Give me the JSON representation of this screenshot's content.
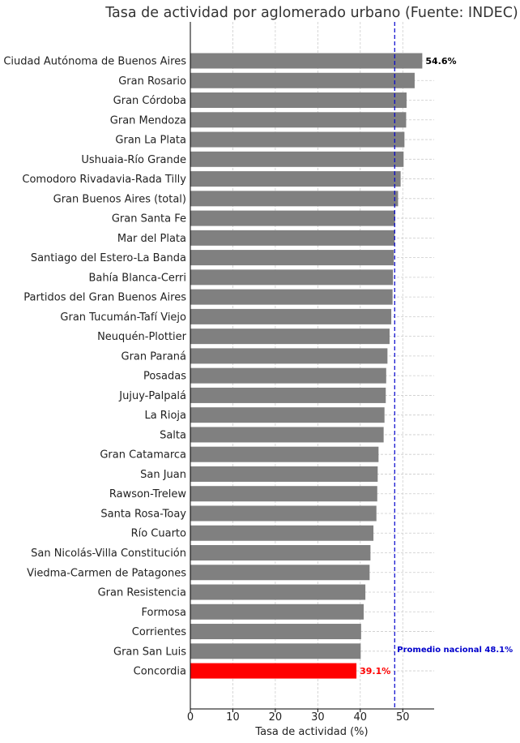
{
  "chart_data": {
    "type": "bar",
    "orientation": "horizontal",
    "title": "Tasa de actividad por aglomerado urbano (Fuente: INDEC)",
    "xlabel": "Tasa de actividad (%)",
    "ylabel": "",
    "xlim": [
      0,
      57.5
    ],
    "xticks": [
      0,
      10,
      20,
      30,
      40,
      50
    ],
    "grid": true,
    "categories": [
      "Ciudad Autónoma de Buenos Aires",
      "Gran Rosario",
      "Gran Córdoba",
      "Gran Mendoza",
      "Gran La Plata",
      "Ushuaia-Río Grande",
      "Comodoro Rivadavia-Rada Tilly",
      "Gran Buenos Aires (total)",
      "Gran Santa Fe",
      "Mar del Plata",
      "Santiago del Estero-La Banda",
      "Bahía Blanca-Cerri",
      "Partidos del Gran Buenos Aires",
      "Gran Tucumán-Tafí Viejo",
      "Neuquén-Plottier",
      "Gran Paraná",
      "Posadas",
      "Jujuy-Palpalá",
      "La Rioja",
      "Salta",
      "Gran Catamarca",
      "San Juan",
      "Rawson-Trelew",
      "Santa Rosa-Toay",
      "Río Cuarto",
      "San Nicolás-Villa Constitución",
      "Viedma-Carmen de Patagones",
      "Gran Resistencia",
      "Formosa",
      "Corrientes",
      "Gran San Luis",
      "Concordia"
    ],
    "values": [
      54.6,
      52.8,
      50.9,
      50.8,
      50.4,
      50.2,
      49.5,
      48.9,
      48.2,
      48.1,
      47.9,
      47.7,
      47.6,
      47.3,
      46.9,
      46.4,
      46.1,
      46.0,
      45.7,
      45.5,
      44.3,
      44.1,
      44.0,
      43.8,
      43.1,
      42.4,
      42.2,
      41.2,
      40.8,
      40.2,
      40.1,
      39.1
    ],
    "value_labels": {
      "first": "54.6%",
      "last": "39.1%"
    },
    "reference_line": {
      "value": 48.1,
      "label": "Promedio nacional 48.1%",
      "color": "#0000cc"
    },
    "colors": {
      "bar": "#808080",
      "highlight": "#ff0000",
      "grid": "#cccccc"
    }
  }
}
